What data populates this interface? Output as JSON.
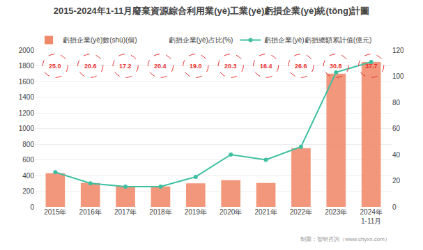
{
  "chart_data": {
    "type": "bar",
    "title": "2015-2024年1-11月廢棄資源綜合利用業(yè)工業(yè)虧損企業(yè)統(tǒng)計圖",
    "categories": [
      "2015年",
      "2016年",
      "2017年",
      "2018年",
      "2019年",
      "2020年",
      "2021年",
      "2022年",
      "2023年",
      "2024年\n1-11月"
    ],
    "series": [
      {
        "name": "虧損企業(yè)數(shù)(個)",
        "type": "bar",
        "color": "#F0896A",
        "values": [
          430,
          305,
          265,
          260,
          300,
          340,
          305,
          750,
          1700,
          1850
        ]
      },
      {
        "name": "虧損企業(yè)占比(%)",
        "type": "text",
        "color": "#E83030",
        "marker": "circle",
        "line_style": "dashed",
        "data_labels": true,
        "values": [
          25.0,
          20.6,
          17.2,
          20.4,
          19.0,
          20.3,
          16.4,
          26.6,
          30.8,
          37.7
        ],
        "value_labels": [
          "25.0",
          "20.6",
          "17.2",
          "20.4",
          "19.0",
          "20.3",
          "16.4",
          "26.6",
          "30.8",
          "37.7"
        ]
      },
      {
        "name": "虧損企業(yè)虧損總額累計值(億元)",
        "type": "line",
        "axis": "y2",
        "color": "#3DBFA0",
        "marker": "circle",
        "values": [
          26.5,
          18.0,
          15.5,
          15.5,
          23.0,
          40.0,
          36.0,
          46.0,
          103.0,
          111.0
        ]
      }
    ],
    "ylim": [
      0,
      2000
    ],
    "yticks": [
      0,
      200,
      400,
      600,
      800,
      1000,
      1200,
      1400,
      1600,
      1800,
      2000
    ],
    "y2lim": [
      0,
      120
    ],
    "y2ticks": [
      0,
      20,
      40,
      60,
      80,
      100,
      120
    ],
    "grid": true,
    "legend": "top",
    "annotations": [
      "制圖：智研咨詢（www.chyxx.com）"
    ]
  }
}
